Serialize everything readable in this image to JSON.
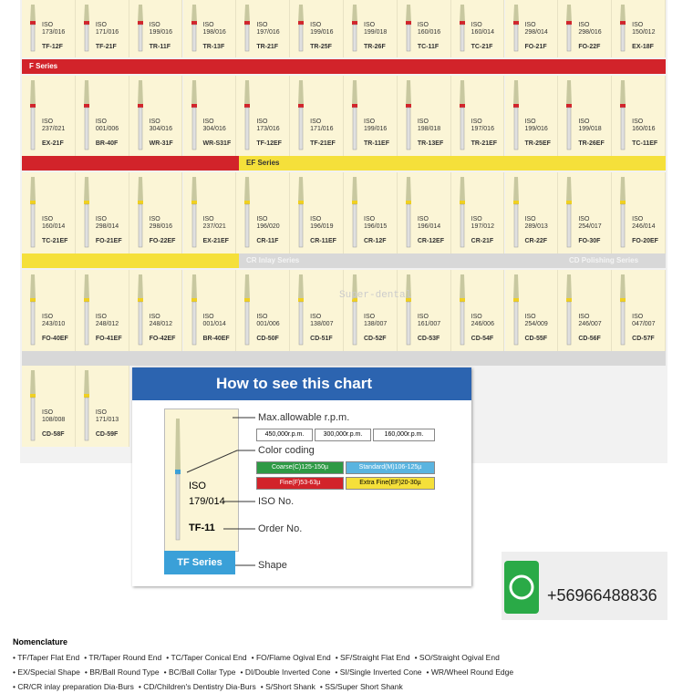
{
  "iso_label": "ISO",
  "rows": [
    [
      {
        "iso": "173/016",
        "no": "TF-12F"
      },
      {
        "iso": "171/016",
        "no": "TF-21F"
      },
      {
        "iso": "199/016",
        "no": "TR-11F"
      },
      {
        "iso": "198/016",
        "no": "TR-13F"
      },
      {
        "iso": "197/016",
        "no": "TR-21F"
      },
      {
        "iso": "199/016",
        "no": "TR-25F"
      },
      {
        "iso": "199/018",
        "no": "TR-26F"
      },
      {
        "iso": "160/016",
        "no": "TC-11F"
      },
      {
        "iso": "160/014",
        "no": "TC-21F"
      },
      {
        "iso": "298/014",
        "no": "FO-21F"
      },
      {
        "iso": "298/016",
        "no": "FO-22F"
      },
      {
        "iso": "150/012",
        "no": "EX-18F"
      }
    ],
    [
      {
        "iso": "237/021",
        "no": "EX-21F"
      },
      {
        "iso": "001/006",
        "no": "BR-40F"
      },
      {
        "iso": "304/016",
        "no": "WR-31F"
      },
      {
        "iso": "304/016",
        "no": "WR-S31F"
      },
      {
        "iso": "173/016",
        "no": "TF-12EF"
      },
      {
        "iso": "171/016",
        "no": "TF-21EF"
      },
      {
        "iso": "199/016",
        "no": "TR-11EF"
      },
      {
        "iso": "198/018",
        "no": "TR-13EF"
      },
      {
        "iso": "197/016",
        "no": "TR-21EF"
      },
      {
        "iso": "199/016",
        "no": "TR-25EF"
      },
      {
        "iso": "199/018",
        "no": "TR-26EF"
      },
      {
        "iso": "160/016",
        "no": "TC-11EF"
      }
    ],
    [
      {
        "iso": "160/014",
        "no": "TC-21EF"
      },
      {
        "iso": "298/014",
        "no": "FO-21EF"
      },
      {
        "iso": "298/016",
        "no": "FO-22EF"
      },
      {
        "iso": "237/021",
        "no": "EX-21EF"
      },
      {
        "iso": "196/020",
        "no": "CR-11F"
      },
      {
        "iso": "196/019",
        "no": "CR-11EF"
      },
      {
        "iso": "196/015",
        "no": "CR-12F"
      },
      {
        "iso": "196/014",
        "no": "CR-12EF"
      },
      {
        "iso": "197/012",
        "no": "CR-21F"
      },
      {
        "iso": "289/013",
        "no": "CR-22F"
      },
      {
        "iso": "254/017",
        "no": "FO-30F"
      },
      {
        "iso": "246/014",
        "no": "FO-20EF"
      }
    ],
    [
      {
        "iso": "243/010",
        "no": "FO-40EF"
      },
      {
        "iso": "248/012",
        "no": "FO-41EF"
      },
      {
        "iso": "248/012",
        "no": "FO-42EF"
      },
      {
        "iso": "001/014",
        "no": "BR-40EF"
      },
      {
        "iso": "001/006",
        "no": "CD-50F"
      },
      {
        "iso": "138/007",
        "no": "CD-51F"
      },
      {
        "iso": "138/007",
        "no": "CD-52F"
      },
      {
        "iso": "161/007",
        "no": "CD-53F"
      },
      {
        "iso": "246/006",
        "no": "CD-54F"
      },
      {
        "iso": "254/009",
        "no": "CD-55F"
      },
      {
        "iso": "246/007",
        "no": "CD-56F"
      },
      {
        "iso": "047/007",
        "no": "CD-57F"
      }
    ],
    [
      {
        "iso": "108/008",
        "no": "CD-58F"
      },
      {
        "iso": "171/013",
        "no": "CD-59F"
      }
    ]
  ],
  "bars": {
    "f": "F Series",
    "ef": "EF Series",
    "cr": "CR Inlay Series",
    "cd": "CD Polishing Series"
  },
  "watermark": "Super-dental",
  "guide": {
    "title": "How to see this chart",
    "rpm_title": "Max.allowable r.p.m.",
    "rpm": [
      "450,000r.p.m.",
      "300,000r.p.m.",
      "160,000r.p.m."
    ],
    "color_title": "Color coding",
    "colors": [
      "Coarse(C)125-150µ",
      "Standard(M)106-125µ",
      "Fine(F)53-63µ",
      "Extra Fine(EF)20-30µ"
    ],
    "sample_iso": "ISO",
    "sample_no": "179/014",
    "sample_order": "TF-11",
    "sample_series": "TF Series",
    "iso_no": "ISO No.",
    "order_no": "Order No.",
    "shape": "Shape"
  },
  "phone": "+56966488836",
  "nomenclature": {
    "title": "Nomenclature",
    "lines": [
      [
        "TF/Taper Flat End",
        "TR/Taper Round End",
        "TC/Taper Conical End",
        "FO/Flame Ogival End",
        "SF/Straight Flat End",
        "SO/Straight Ogival End"
      ],
      [
        "EX/Special Shape",
        "BR/Ball Round Type",
        "BC/Ball Collar Type",
        "DI/Double Inverted Cone",
        "SI/Single Inverted Cone",
        "WR/Wheel Round Edge"
      ],
      [
        "CR/CR inlay preparation Dia-Burs",
        "CD/Children's Dentistry Dia-Burs",
        "S/Short Shank",
        "SS/Super Short Shank"
      ]
    ]
  }
}
